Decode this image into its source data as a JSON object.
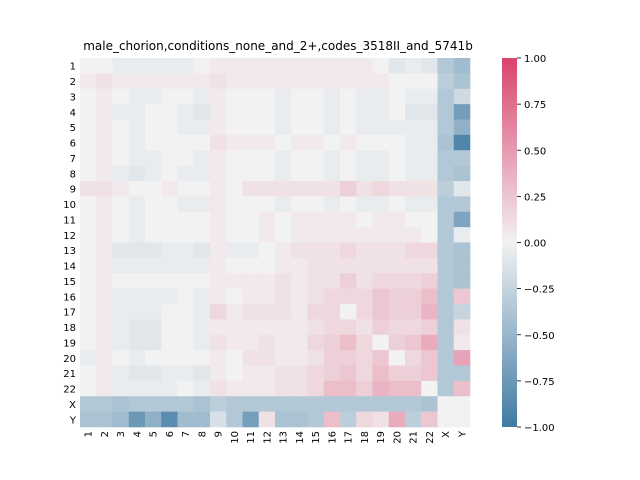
{
  "chart_data": {
    "type": "heatmap",
    "title": "male_chorion,conditions_none_and_2+,codes_3518II_and_5741b",
    "x_labels": [
      "1",
      "2",
      "3",
      "4",
      "5",
      "6",
      "7",
      "8",
      "9",
      "10",
      "11",
      "12",
      "13",
      "14",
      "15",
      "16",
      "17",
      "18",
      "19",
      "20",
      "21",
      "22",
      "X",
      "Y"
    ],
    "y_labels": [
      "1",
      "2",
      "3",
      "4",
      "5",
      "6",
      "7",
      "8",
      "9",
      "10",
      "11",
      "12",
      "13",
      "14",
      "15",
      "16",
      "17",
      "18",
      "19",
      "20",
      "21",
      "22",
      "X",
      "Y"
    ],
    "vmin": -1.0,
    "vmax": 1.0,
    "colorbar_ticks": [
      "1.00",
      "0.75",
      "0.50",
      "0.25",
      "0.00",
      "−0.25",
      "−0.50",
      "−0.75",
      "−1.00"
    ],
    "colormap": {
      "low": "#3f7aa3",
      "mid": "#f2f2f2",
      "high": "#d9436e"
    },
    "values": [
      [
        0.0,
        0.0,
        -0.05,
        -0.05,
        -0.05,
        -0.05,
        -0.05,
        0.0,
        0.05,
        0.05,
        0.05,
        0.05,
        0.05,
        0.05,
        0.05,
        0.05,
        0.05,
        0.05,
        0.0,
        -0.1,
        -0.05,
        -0.1,
        -0.35,
        -0.45
      ],
      [
        0.05,
        0.1,
        0.05,
        0.05,
        0.05,
        0.05,
        0.05,
        0.05,
        0.1,
        0.05,
        0.05,
        0.05,
        0.05,
        0.05,
        0.05,
        0.05,
        0.05,
        0.05,
        0.05,
        0.0,
        0.0,
        0.0,
        -0.3,
        -0.4
      ],
      [
        0.0,
        0.05,
        0.0,
        -0.05,
        -0.05,
        0.0,
        0.0,
        -0.05,
        0.05,
        0.0,
        0.0,
        0.0,
        -0.05,
        0.0,
        0.0,
        -0.05,
        0.0,
        -0.05,
        -0.05,
        0.0,
        -0.05,
        -0.05,
        -0.35,
        -0.2
      ],
      [
        0.0,
        0.05,
        -0.05,
        -0.05,
        0.0,
        0.0,
        -0.05,
        -0.1,
        0.05,
        0.0,
        0.0,
        0.0,
        -0.05,
        0.0,
        0.0,
        -0.05,
        0.0,
        -0.05,
        -0.05,
        0.0,
        -0.1,
        -0.1,
        -0.35,
        -0.7
      ],
      [
        0.0,
        0.05,
        0.0,
        -0.05,
        0.0,
        0.0,
        -0.05,
        -0.05,
        0.05,
        0.0,
        0.0,
        0.0,
        -0.05,
        0.0,
        0.0,
        -0.05,
        0.0,
        -0.05,
        -0.05,
        -0.05,
        -0.05,
        -0.05,
        -0.35,
        -0.55
      ],
      [
        0.0,
        0.05,
        0.0,
        -0.05,
        0.0,
        0.0,
        0.0,
        0.0,
        0.1,
        0.05,
        0.05,
        0.05,
        0.0,
        0.05,
        0.05,
        0.0,
        0.05,
        0.0,
        0.0,
        0.0,
        -0.05,
        -0.05,
        -0.4,
        -0.9
      ],
      [
        0.0,
        0.05,
        0.0,
        -0.05,
        -0.05,
        0.0,
        0.0,
        -0.05,
        0.05,
        0.0,
        0.0,
        0.0,
        -0.05,
        0.0,
        0.0,
        -0.05,
        0.0,
        -0.05,
        -0.05,
        0.0,
        -0.05,
        -0.05,
        -0.35,
        -0.35
      ],
      [
        0.0,
        0.05,
        -0.05,
        -0.1,
        -0.05,
        0.0,
        -0.05,
        -0.05,
        0.05,
        0.0,
        0.0,
        0.0,
        -0.05,
        0.0,
        0.0,
        -0.05,
        0.0,
        -0.05,
        -0.05,
        0.0,
        -0.05,
        -0.05,
        -0.35,
        -0.4
      ],
      [
        0.1,
        0.1,
        0.05,
        0.0,
        0.0,
        0.05,
        0.0,
        0.0,
        0.05,
        0.0,
        0.1,
        0.1,
        0.1,
        0.1,
        0.1,
        0.1,
        0.2,
        0.1,
        0.15,
        0.1,
        0.1,
        0.1,
        -0.3,
        -0.1
      ],
      [
        0.0,
        0.05,
        0.0,
        -0.05,
        0.0,
        0.0,
        -0.05,
        -0.05,
        0.05,
        0.0,
        0.0,
        0.0,
        -0.05,
        0.0,
        0.0,
        -0.05,
        0.0,
        -0.05,
        -0.05,
        0.0,
        -0.05,
        -0.05,
        -0.35,
        -0.35
      ],
      [
        0.0,
        0.05,
        0.0,
        -0.05,
        0.0,
        0.0,
        0.0,
        0.0,
        0.05,
        0.0,
        0.0,
        0.05,
        0.0,
        0.05,
        0.05,
        0.05,
        0.05,
        0.0,
        0.05,
        0.05,
        0.0,
        0.0,
        -0.35,
        -0.65
      ],
      [
        0.0,
        0.05,
        0.0,
        -0.05,
        0.0,
        0.0,
        0.0,
        0.0,
        0.05,
        0.0,
        0.0,
        0.05,
        0.0,
        0.05,
        0.05,
        0.05,
        0.05,
        0.05,
        0.05,
        0.05,
        0.05,
        0.0,
        -0.35,
        -0.05
      ],
      [
        0.0,
        0.05,
        -0.1,
        -0.1,
        -0.1,
        -0.05,
        -0.05,
        -0.1,
        0.05,
        -0.05,
        -0.05,
        0.0,
        0.05,
        0.1,
        0.1,
        0.1,
        0.15,
        0.1,
        0.1,
        0.1,
        0.15,
        0.15,
        -0.35,
        -0.4
      ],
      [
        0.0,
        0.05,
        -0.05,
        -0.05,
        -0.05,
        -0.05,
        -0.05,
        -0.05,
        0.05,
        0.0,
        0.0,
        0.0,
        0.05,
        0.05,
        0.1,
        0.1,
        0.1,
        0.1,
        0.1,
        0.1,
        0.1,
        0.1,
        -0.35,
        -0.4
      ],
      [
        0.0,
        0.05,
        0.0,
        0.0,
        0.0,
        0.0,
        0.0,
        0.0,
        0.05,
        0.05,
        0.05,
        0.05,
        0.1,
        0.05,
        0.1,
        0.1,
        0.2,
        0.1,
        0.15,
        0.15,
        0.15,
        0.2,
        -0.35,
        -0.4
      ],
      [
        0.0,
        0.05,
        -0.05,
        -0.05,
        -0.05,
        -0.05,
        0.0,
        -0.05,
        0.05,
        0.0,
        0.05,
        0.05,
        0.1,
        0.05,
        0.1,
        0.15,
        0.15,
        0.15,
        0.25,
        0.2,
        0.2,
        0.3,
        -0.35,
        0.25
      ],
      [
        0.0,
        0.05,
        -0.05,
        -0.05,
        -0.05,
        0.0,
        0.0,
        -0.05,
        0.15,
        0.05,
        0.1,
        0.1,
        0.1,
        0.05,
        0.15,
        0.15,
        0.0,
        0.15,
        0.25,
        0.2,
        0.2,
        0.35,
        -0.35,
        -0.25
      ],
      [
        0.0,
        0.05,
        -0.05,
        -0.1,
        -0.1,
        0.0,
        0.0,
        -0.05,
        0.05,
        0.05,
        0.05,
        0.05,
        0.05,
        0.05,
        0.1,
        0.15,
        0.15,
        0.1,
        0.2,
        0.15,
        0.15,
        0.2,
        -0.35,
        0.1
      ],
      [
        0.0,
        0.05,
        -0.05,
        -0.1,
        -0.1,
        0.0,
        0.0,
        -0.05,
        0.1,
        0.05,
        0.05,
        0.1,
        0.05,
        0.05,
        0.15,
        0.2,
        0.3,
        0.15,
        0.0,
        0.2,
        0.25,
        0.4,
        -0.35,
        0.05
      ],
      [
        -0.05,
        0.05,
        0.0,
        -0.05,
        0.0,
        0.0,
        0.0,
        0.0,
        0.05,
        0.0,
        0.1,
        0.1,
        0.05,
        0.05,
        0.1,
        0.2,
        0.2,
        0.15,
        0.25,
        0.0,
        0.15,
        0.25,
        -0.35,
        0.45
      ],
      [
        0.0,
        0.05,
        -0.05,
        -0.1,
        -0.1,
        -0.05,
        -0.05,
        -0.1,
        0.05,
        0.0,
        0.05,
        0.05,
        0.1,
        0.1,
        0.15,
        0.2,
        0.25,
        0.15,
        0.3,
        0.2,
        0.2,
        0.25,
        -0.35,
        -0.35
      ],
      [
        0.0,
        0.05,
        -0.05,
        -0.05,
        -0.05,
        -0.05,
        0.0,
        -0.05,
        0.1,
        0.05,
        0.05,
        0.05,
        0.1,
        0.1,
        0.15,
        0.3,
        0.3,
        0.2,
        0.35,
        0.3,
        0.3,
        0.0,
        -0.35,
        0.3
      ],
      [
        -0.35,
        -0.35,
        -0.4,
        -0.35,
        -0.35,
        -0.35,
        -0.35,
        -0.4,
        -0.3,
        -0.35,
        -0.35,
        -0.35,
        -0.35,
        -0.35,
        -0.35,
        -0.35,
        -0.35,
        -0.35,
        -0.35,
        -0.35,
        -0.35,
        -0.4,
        0.0,
        0.0
      ],
      [
        -0.4,
        -0.4,
        -0.45,
        -0.75,
        -0.55,
        -0.85,
        -0.45,
        -0.45,
        -0.15,
        -0.35,
        -0.7,
        0.1,
        -0.4,
        -0.4,
        -0.35,
        0.3,
        -0.3,
        0.15,
        0.1,
        0.4,
        -0.3,
        0.25,
        0.0,
        0.0
      ]
    ]
  }
}
